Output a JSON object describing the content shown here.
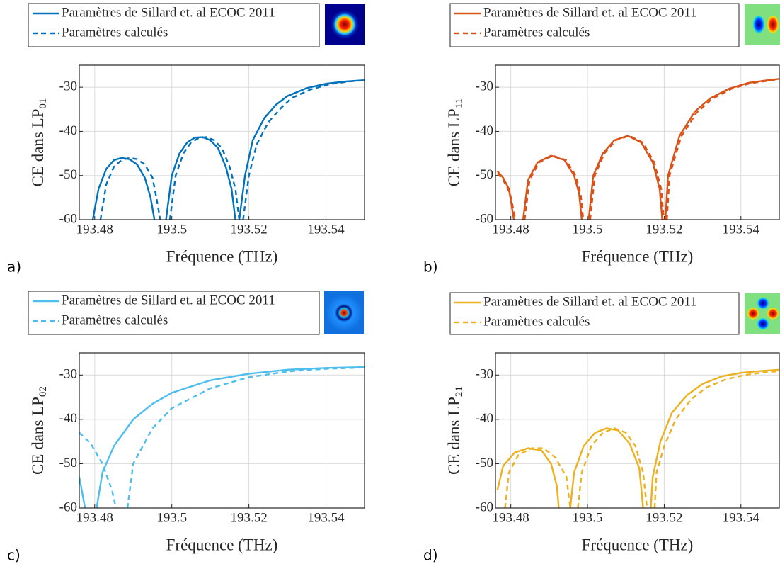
{
  "chart_data": [
    {
      "type": "line",
      "panel": "a)",
      "xlabel": "Fréquence (THz)",
      "ylabel": "CE dans LP",
      "ylabel_subscript": "01",
      "xlim": [
        193.476,
        193.55
      ],
      "ylim": [
        -60,
        -25
      ],
      "xticks": [
        193.48,
        193.5,
        193.52,
        193.54
      ],
      "yticks": [
        -60,
        -50,
        -40,
        -30
      ],
      "grid": true,
      "series": [
        {
          "name": "Paramètres de Sillard et. al ECOC 2011",
          "color": "#0072bd",
          "style": "solid",
          "x": [
            193.4795,
            193.481,
            193.483,
            193.485,
            193.487,
            193.489,
            193.491,
            193.493,
            193.4945,
            193.4955,
            null,
            193.4985,
            193.5,
            193.502,
            193.504,
            193.506,
            193.508,
            193.51,
            193.512,
            193.514,
            193.5155,
            193.5165,
            null,
            193.5175,
            193.519,
            193.521,
            193.524,
            193.527,
            193.53,
            193.535,
            193.54,
            193.545,
            193.55
          ],
          "values": [
            -60,
            -53,
            -48.5,
            -46.5,
            -46,
            -46.3,
            -47.5,
            -50.5,
            -55,
            -60,
            null,
            -60,
            -50,
            -45,
            -42.5,
            -41.4,
            -41.3,
            -42,
            -43.8,
            -48,
            -53,
            -60,
            null,
            -60,
            -50,
            -42,
            -37,
            -34,
            -32,
            -30.2,
            -29.2,
            -28.7,
            -28.4
          ]
        },
        {
          "name": "Paramètres calculés",
          "color": "#0072bd",
          "style": "dashed",
          "x": [
            193.4815,
            193.483,
            193.485,
            193.487,
            193.489,
            193.491,
            193.493,
            193.495,
            193.496,
            193.497,
            null,
            193.4995,
            193.501,
            193.503,
            193.505,
            193.507,
            193.509,
            193.511,
            193.513,
            193.515,
            193.5165,
            193.5175,
            null,
            193.5185,
            193.52,
            193.522,
            193.525,
            193.528,
            193.531,
            193.536,
            193.541,
            193.546,
            193.55
          ],
          "values": [
            -60,
            -52,
            -48,
            -46.5,
            -46,
            -46.3,
            -47.5,
            -50.5,
            -55,
            -60,
            null,
            -60,
            -50,
            -45,
            -42.5,
            -41.5,
            -41.3,
            -42,
            -43.8,
            -48,
            -53,
            -60,
            null,
            -60,
            -50,
            -43,
            -38,
            -35,
            -32.5,
            -30.5,
            -29.3,
            -28.7,
            -28.4
          ]
        }
      ]
    },
    {
      "type": "line",
      "panel": "b)",
      "xlabel": "Fréquence (THz)",
      "ylabel": "CE dans LP",
      "ylabel_subscript": "11",
      "xlim": [
        193.476,
        193.55
      ],
      "ylim": [
        -60,
        -25
      ],
      "xticks": [
        193.48,
        193.5,
        193.52,
        193.54
      ],
      "yticks": [
        -60,
        -50,
        -40,
        -30
      ],
      "grid": true,
      "series": [
        {
          "name": "Paramètres de Sillard et. al ECOC 2011",
          "color": "#d95319",
          "style": "solid",
          "x": [
            193.4765,
            193.478,
            193.4795,
            193.4808,
            null,
            193.4832,
            193.4845,
            193.487,
            193.4905,
            193.494,
            193.4965,
            193.4978,
            193.4985,
            null,
            193.5003,
            193.5015,
            193.504,
            193.507,
            193.5105,
            193.514,
            193.517,
            193.5188,
            193.5195,
            null,
            193.5203,
            193.521,
            193.524,
            193.528,
            193.532,
            193.537,
            193.542,
            193.547,
            193.55
          ],
          "values": [
            -49,
            -50.5,
            -53,
            -60,
            null,
            -60,
            -51,
            -47,
            -45.5,
            -46.5,
            -50,
            -54,
            -60,
            null,
            -60,
            -50,
            -45,
            -42,
            -41,
            -42.5,
            -47,
            -53,
            -60,
            null,
            -60,
            -50,
            -41,
            -35.5,
            -32.5,
            -30.3,
            -29,
            -28.4,
            -28.1
          ]
        },
        {
          "name": "Paramètres calculés",
          "color": "#d95319",
          "style": "dashed",
          "x": [
            193.4765,
            193.478,
            193.4798,
            193.4812,
            null,
            193.4836,
            193.4849,
            193.4874,
            193.4909,
            193.4944,
            193.4969,
            193.4982,
            193.4989,
            null,
            193.5007,
            193.5019,
            193.5044,
            193.5074,
            193.5109,
            193.5144,
            193.5174,
            193.5192,
            193.5199,
            null,
            193.5207,
            193.5214,
            193.5244,
            193.5284,
            193.5324,
            193.5374,
            193.5424,
            193.5474,
            193.55
          ],
          "values": [
            -49.5,
            -51,
            -54,
            -60,
            null,
            -60,
            -51,
            -47,
            -45.5,
            -46.5,
            -50,
            -54,
            -60,
            null,
            -60,
            -50,
            -45,
            -42,
            -41,
            -42.5,
            -47,
            -53,
            -60,
            null,
            -60,
            -50,
            -41.2,
            -35.8,
            -32.7,
            -30.4,
            -29.1,
            -28.5,
            -28.2
          ]
        }
      ]
    },
    {
      "type": "line",
      "panel": "c)",
      "xlabel": "Fréquence (THz)",
      "ylabel": "CE dans LP",
      "ylabel_subscript": "02",
      "xlim": [
        193.476,
        193.55
      ],
      "ylim": [
        -60,
        -25
      ],
      "xticks": [
        193.48,
        193.5,
        193.52,
        193.54
      ],
      "yticks": [
        -60,
        -50,
        -40,
        -30
      ],
      "grid": true,
      "series": [
        {
          "name": "Paramètres de Sillard et. al ECOC 2011",
          "color": "#4dbeee",
          "style": "solid",
          "x": [
            193.476,
            193.4775,
            null,
            193.4805,
            193.482,
            193.485,
            193.49,
            193.495,
            193.5,
            193.51,
            193.52,
            193.53,
            193.54,
            193.55
          ],
          "values": [
            -53,
            -60,
            null,
            -60,
            -52,
            -46,
            -40,
            -36.5,
            -34,
            -31.2,
            -29.7,
            -28.8,
            -28.4,
            -28.2
          ]
        },
        {
          "name": "Paramètres calculés",
          "color": "#4dbeee",
          "style": "dashed",
          "x": [
            193.476,
            193.479,
            193.482,
            193.4845,
            193.4855,
            null,
            193.4885,
            193.49,
            193.495,
            193.5,
            193.51,
            193.52,
            193.53,
            193.54,
            193.55
          ],
          "values": [
            -43,
            -45.5,
            -50,
            -56,
            -60,
            null,
            -60,
            -50,
            -42,
            -37.5,
            -33,
            -30.5,
            -29.2,
            -28.6,
            -28.3
          ]
        }
      ]
    },
    {
      "type": "line",
      "panel": "d)",
      "xlabel": "Fréquence (THz)",
      "ylabel": "CE dans LP",
      "ylabel_subscript": "21",
      "xlim": [
        193.476,
        193.55
      ],
      "ylim": [
        -60,
        -25
      ],
      "xticks": [
        193.48,
        193.5,
        193.52,
        193.54
      ],
      "yticks": [
        -60,
        -50,
        -40,
        -30
      ],
      "grid": true,
      "series": [
        {
          "name": "Paramètres de Sillard et. al ECOC 2011",
          "color": "#edb120",
          "style": "solid",
          "x": [
            193.4765,
            193.478,
            193.481,
            193.4845,
            193.488,
            193.4905,
            193.492,
            193.4925,
            null,
            193.4955,
            193.4965,
            193.499,
            193.502,
            193.505,
            193.508,
            193.511,
            193.5135,
            193.5145,
            null,
            193.5165,
            193.517,
            193.519,
            193.522,
            193.526,
            193.53,
            193.535,
            193.54,
            193.545,
            193.55
          ],
          "values": [
            -56,
            -50.5,
            -47.5,
            -46.5,
            -47,
            -50,
            -55,
            -60,
            null,
            -60,
            -52,
            -46,
            -43,
            -42,
            -42.5,
            -45.5,
            -51,
            -60,
            null,
            -60,
            -53,
            -45,
            -38.5,
            -34.5,
            -32,
            -30.3,
            -29.5,
            -29.1,
            -28.8
          ]
        },
        {
          "name": "Paramètres calculés",
          "color": "#edb120",
          "style": "dashed",
          "x": [
            193.4785,
            193.4795,
            193.482,
            193.4855,
            193.4885,
            193.4915,
            193.4945,
            193.4955,
            null,
            193.4975,
            193.4985,
            193.501,
            193.504,
            193.507,
            193.51,
            193.5125,
            193.5145,
            193.5155,
            null,
            193.5175,
            193.518,
            193.52,
            193.523,
            193.527,
            193.531,
            193.536,
            193.541,
            193.546,
            193.55
          ],
          "values": [
            -60,
            -52,
            -48,
            -46.5,
            -46.5,
            -48.5,
            -53,
            -60,
            null,
            -60,
            -52,
            -46,
            -43,
            -42,
            -43,
            -46,
            -52,
            -60,
            null,
            -60,
            -52,
            -46,
            -40,
            -35.5,
            -32.8,
            -31,
            -30,
            -29.4,
            -29.1
          ]
        }
      ]
    }
  ]
}
